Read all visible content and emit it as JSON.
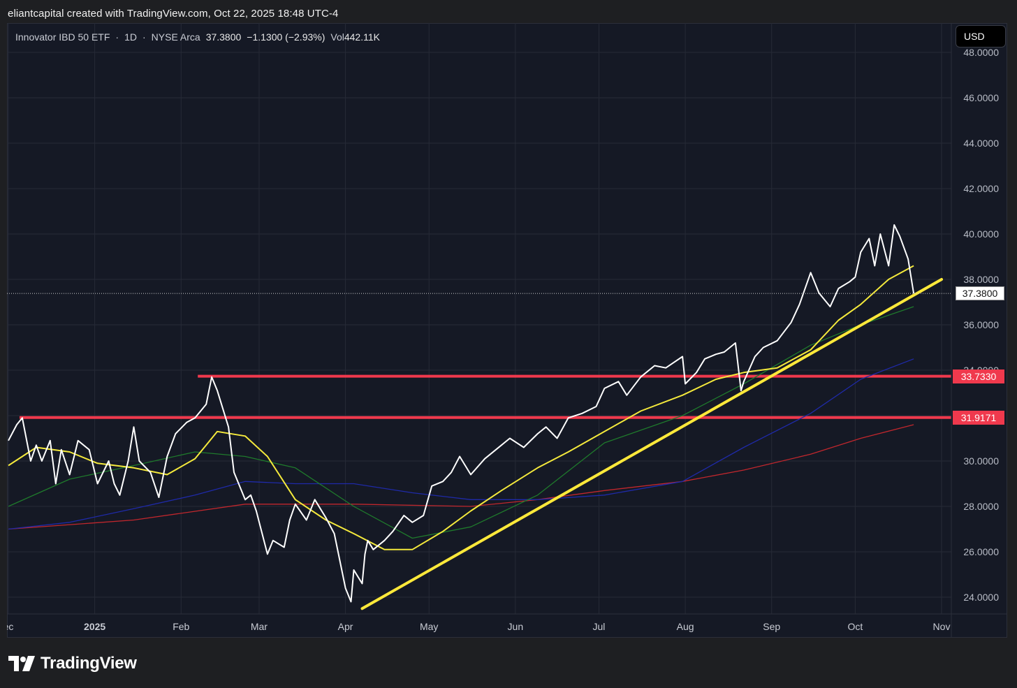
{
  "header": {
    "credit": "eliantcapital created with TradingView.com, Oct 22, 2025 18:48 UTC-4"
  },
  "legend": {
    "instrument": "Innovator IBD 50 ETF",
    "interval": "1D",
    "exchange": "NYSE Arca",
    "last": "37.3800",
    "change": "−1.1300 (−2.93%)",
    "vol_label": "Vol",
    "vol_value": "442.11K"
  },
  "currency_button": "USD",
  "logo_text": "TradingView",
  "price_tags": {
    "last": "37.3800",
    "resistance_upper": "33.7330",
    "resistance_lower": "31.9171"
  },
  "colors": {
    "background": "#151925",
    "price_line": "#ffffff",
    "ma_yellow": "#f5ea3c",
    "ma_green": "#1f7a2c",
    "ma_blue": "#1f2aa8",
    "ma_red": "#c1272d",
    "level_red": "#f0394d",
    "trendline": "#ffe93a"
  },
  "chart_data": {
    "type": "line",
    "title": "Innovator IBD 50 ETF · 1D · NYSE Arca",
    "y_tick_labels": [
      "24.0000",
      "26.0000",
      "28.0000",
      "30.0000",
      "32.0000",
      "34.0000",
      "36.0000",
      "38.0000",
      "40.0000",
      "42.0000",
      "44.0000",
      "46.0000",
      "48.0000"
    ],
    "ylim": [
      23.5,
      48.2
    ],
    "x_tick_labels": [
      "ec",
      "2025",
      "Feb",
      "Mar",
      "Apr",
      "May",
      "Jun",
      "Jul",
      "Aug",
      "Sep",
      "Oct",
      "Nov"
    ],
    "x_tick_dates": [
      "2024-12-01",
      "2025-01-01",
      "2025-02-01",
      "2025-03-01",
      "2025-04-01",
      "2025-05-01",
      "2025-06-01",
      "2025-07-01",
      "2025-08-01",
      "2025-09-01",
      "2025-10-01",
      "2025-11-01"
    ],
    "grid": true,
    "series": [
      {
        "style": "price",
        "x": [
          "2024-12-01",
          "2024-12-04",
          "2024-12-06",
          "2024-12-09",
          "2024-12-11",
          "2024-12-13",
          "2024-12-16",
          "2024-12-18",
          "2024-12-20",
          "2024-12-23",
          "2024-12-26",
          "2024-12-30",
          "2025-01-02",
          "2025-01-06",
          "2025-01-08",
          "2025-01-10",
          "2025-01-13",
          "2025-01-15",
          "2025-01-17",
          "2025-01-21",
          "2025-01-24",
          "2025-01-27",
          "2025-01-30",
          "2025-02-03",
          "2025-02-06",
          "2025-02-10",
          "2025-02-12",
          "2025-02-14",
          "2025-02-18",
          "2025-02-20",
          "2025-02-24",
          "2025-02-26",
          "2025-02-28",
          "2025-03-04",
          "2025-03-06",
          "2025-03-10",
          "2025-03-12",
          "2025-03-14",
          "2025-03-18",
          "2025-03-21",
          "2025-03-25",
          "2025-03-28",
          "2025-04-01",
          "2025-04-03",
          "2025-04-04",
          "2025-04-07",
          "2025-04-08",
          "2025-04-09",
          "2025-04-11",
          "2025-04-15",
          "2025-04-18",
          "2025-04-22",
          "2025-04-25",
          "2025-04-29",
          "2025-05-02",
          "2025-05-06",
          "2025-05-09",
          "2025-05-12",
          "2025-05-16",
          "2025-05-21",
          "2025-05-27",
          "2025-05-30",
          "2025-06-04",
          "2025-06-09",
          "2025-06-12",
          "2025-06-16",
          "2025-06-20",
          "2025-06-25",
          "2025-06-30",
          "2025-07-03",
          "2025-07-08",
          "2025-07-11",
          "2025-07-16",
          "2025-07-21",
          "2025-07-25",
          "2025-07-31",
          "2025-08-01",
          "2025-08-05",
          "2025-08-08",
          "2025-08-12",
          "2025-08-15",
          "2025-08-19",
          "2025-08-21",
          "2025-08-22",
          "2025-08-26",
          "2025-08-29",
          "2025-09-03",
          "2025-09-08",
          "2025-09-11",
          "2025-09-15",
          "2025-09-18",
          "2025-09-22",
          "2025-09-25",
          "2025-09-29",
          "2025-10-01",
          "2025-10-03",
          "2025-10-06",
          "2025-10-08",
          "2025-10-10",
          "2025-10-13",
          "2025-10-15",
          "2025-10-17",
          "2025-10-20",
          "2025-10-22"
        ],
        "values": [
          30.9,
          31.6,
          31.9,
          30.0,
          30.7,
          30.0,
          30.9,
          29.0,
          30.5,
          29.4,
          30.9,
          30.5,
          29.0,
          30.0,
          29.0,
          28.5,
          30.0,
          31.5,
          30.0,
          29.5,
          28.4,
          30.2,
          31.2,
          31.7,
          31.9,
          32.5,
          33.7,
          33.1,
          31.5,
          29.5,
          28.3,
          28.5,
          27.8,
          25.9,
          26.5,
          26.2,
          27.4,
          28.1,
          27.4,
          28.3,
          27.5,
          26.8,
          24.4,
          23.8,
          25.2,
          24.6,
          25.9,
          26.5,
          26.1,
          26.5,
          26.9,
          27.6,
          27.3,
          27.6,
          28.9,
          29.1,
          29.5,
          30.2,
          29.4,
          30.1,
          30.7,
          31.0,
          30.6,
          31.2,
          31.5,
          31.0,
          31.9,
          32.1,
          32.4,
          33.2,
          33.5,
          32.9,
          33.7,
          34.2,
          34.1,
          34.6,
          33.4,
          33.9,
          34.5,
          34.7,
          34.8,
          35.2,
          33.1,
          33.5,
          34.6,
          35.0,
          35.3,
          36.1,
          36.9,
          38.3,
          37.4,
          36.8,
          37.6,
          37.9,
          38.1,
          39.2,
          39.8,
          38.6,
          40.0,
          38.6,
          40.4,
          39.9,
          38.9,
          37.38
        ]
      },
      {
        "style": "ma-yellow",
        "x": [
          "2024-12-01",
          "2024-12-11",
          "2024-12-23",
          "2025-01-02",
          "2025-01-15",
          "2025-01-27",
          "2025-02-06",
          "2025-02-14",
          "2025-02-24",
          "2025-03-04",
          "2025-03-14",
          "2025-03-25",
          "2025-04-04",
          "2025-04-15",
          "2025-04-25",
          "2025-05-06",
          "2025-05-16",
          "2025-05-27",
          "2025-06-09",
          "2025-06-20",
          "2025-07-03",
          "2025-07-16",
          "2025-07-31",
          "2025-08-12",
          "2025-08-22",
          "2025-09-03",
          "2025-09-15",
          "2025-09-25",
          "2025-10-03",
          "2025-10-13",
          "2025-10-22"
        ],
        "values": [
          29.8,
          30.6,
          30.4,
          29.9,
          29.7,
          29.4,
          30.1,
          31.3,
          31.1,
          30.2,
          28.3,
          27.4,
          26.8,
          26.1,
          26.1,
          26.9,
          27.8,
          28.7,
          29.7,
          30.4,
          31.3,
          32.2,
          32.9,
          33.6,
          33.9,
          34.1,
          34.9,
          36.2,
          36.9,
          38.0,
          38.6
        ]
      },
      {
        "style": "ma-green",
        "x": [
          "2024-12-01",
          "2024-12-23",
          "2025-01-15",
          "2025-02-06",
          "2025-02-24",
          "2025-03-14",
          "2025-04-04",
          "2025-04-25",
          "2025-05-16",
          "2025-06-09",
          "2025-07-03",
          "2025-07-31",
          "2025-08-22",
          "2025-09-15",
          "2025-10-03",
          "2025-10-22"
        ],
        "values": [
          28.0,
          29.2,
          29.8,
          30.4,
          30.2,
          29.7,
          28.0,
          26.6,
          27.1,
          28.5,
          30.8,
          32.0,
          33.4,
          35.1,
          36.0,
          36.8
        ]
      },
      {
        "style": "ma-blue",
        "x": [
          "2024-12-01",
          "2024-12-23",
          "2025-01-15",
          "2025-02-06",
          "2025-02-24",
          "2025-03-14",
          "2025-04-04",
          "2025-04-25",
          "2025-05-16",
          "2025-06-09",
          "2025-07-03",
          "2025-07-31",
          "2025-08-22",
          "2025-09-15",
          "2025-10-03",
          "2025-10-22"
        ],
        "values": [
          27.0,
          27.3,
          27.9,
          28.5,
          29.1,
          29.0,
          29.0,
          28.6,
          28.3,
          28.3,
          28.5,
          29.1,
          30.6,
          32.1,
          33.6,
          34.5
        ]
      },
      {
        "style": "ma-red",
        "x": [
          "2024-12-01",
          "2025-01-15",
          "2025-02-24",
          "2025-03-14",
          "2025-04-04",
          "2025-05-16",
          "2025-06-09",
          "2025-07-03",
          "2025-07-31",
          "2025-08-22",
          "2025-09-15",
          "2025-10-03",
          "2025-10-22"
        ],
        "values": [
          27.0,
          27.4,
          28.1,
          28.1,
          28.1,
          28.0,
          28.3,
          28.7,
          29.1,
          29.6,
          30.3,
          31.0,
          31.6
        ]
      }
    ],
    "levels": [
      {
        "style": "level-upper",
        "value": 33.733,
        "from": "2025-02-07"
      },
      {
        "style": "level-lower",
        "value": 31.9171,
        "from": "2024-12-05"
      }
    ],
    "trendline": {
      "from": [
        "2025-04-07",
        23.5
      ],
      "to": [
        "2025-11-01",
        38.0
      ]
    },
    "last_price": 37.38
  }
}
